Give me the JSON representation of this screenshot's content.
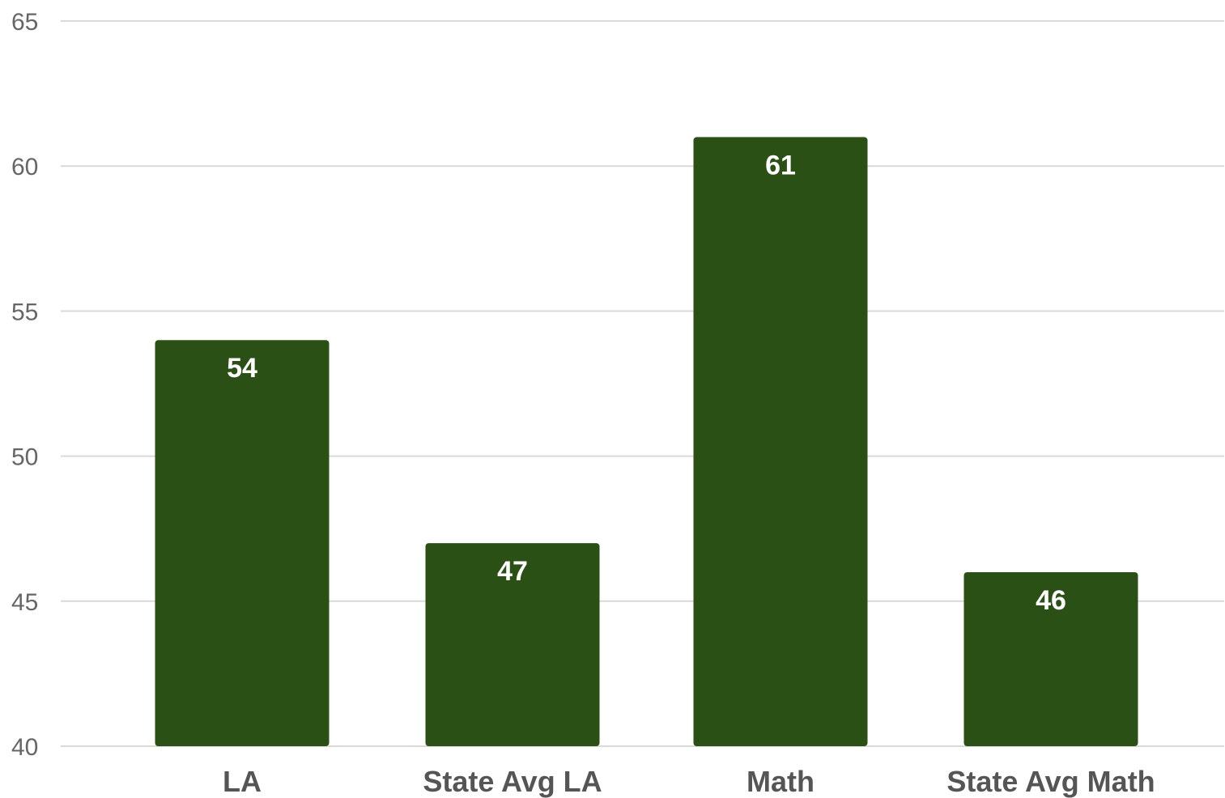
{
  "chart_data": {
    "type": "bar",
    "categories": [
      "LA",
      "State Avg LA",
      "Math",
      "State Avg Math"
    ],
    "values": [
      54,
      47,
      61,
      46
    ],
    "ylim": [
      40,
      65
    ],
    "yticks": [
      65,
      60,
      55,
      50,
      45,
      40
    ],
    "title": "",
    "xlabel": "",
    "ylabel": "",
    "grid": true,
    "legend": "none",
    "data_labels": true,
    "bar_color": "#2a5016"
  }
}
